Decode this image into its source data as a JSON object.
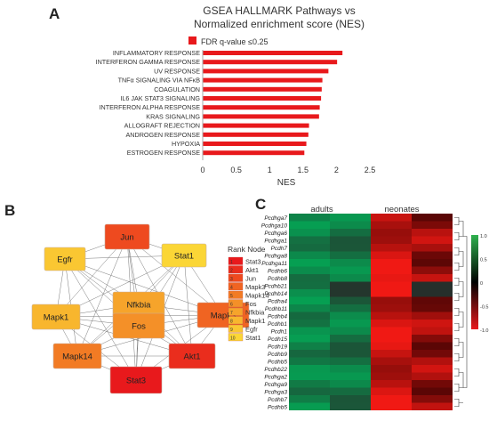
{
  "panel_a": {
    "letter": "A",
    "title_line1": "GSEA HALLMARK Pathways vs",
    "title_line2": "Normalized enrichment score (NES)",
    "legend_label": "FDR q-value  ≤0.25",
    "bar_color": "#e8191c"
  },
  "panel_b": {
    "letter": "B",
    "rank_title": "Rank  Node",
    "ranks": [
      "1",
      "2",
      "3",
      "4",
      "5",
      "6",
      "7",
      "8",
      "9",
      "10"
    ],
    "rank_colors": [
      "#e8191c",
      "#ea2d1d",
      "#ee4a1f",
      "#f06422",
      "#f27b24",
      "#f49028",
      "#f6a42b",
      "#f8b62e",
      "#fac732",
      "#fbd636"
    ],
    "nodes": [
      {
        "id": "jun",
        "label": "Jun",
        "rank": 3
      },
      {
        "id": "egfr",
        "label": "Egfr",
        "rank": 9
      },
      {
        "id": "stat1",
        "label": "Stat1",
        "rank": 10
      },
      {
        "id": "mapk1",
        "label": "Mapk1",
        "rank": 8
      },
      {
        "id": "nfkbia",
        "label": "Nfkbia",
        "rank": 7
      },
      {
        "id": "fos",
        "label": "Fos",
        "rank": 6
      },
      {
        "id": "mapk3",
        "label": "Mapk3",
        "rank": 4
      },
      {
        "id": "mapk14",
        "label": "Mapk14",
        "rank": 5
      },
      {
        "id": "stat3",
        "label": "Stat3",
        "rank": 1
      },
      {
        "id": "akt1",
        "label": "Akt1",
        "rank": 2
      }
    ]
  },
  "panel_c": {
    "letter": "C",
    "group_labels": [
      "adults",
      "neonates"
    ],
    "scale_ticks": [
      "1.0",
      "0.5",
      "0",
      "-0.5",
      "-1.0"
    ],
    "genes": [
      "Pcdhga7",
      "Pcdhga10",
      "Pcdhga6",
      "Pcdhga1",
      "Pcdh7",
      "Pcdhga8",
      "Pcdhga11",
      "Pcdhb6",
      "Pcdhb8",
      "Pcdhb21",
      "Pcdhb14",
      "Pcdha4",
      "Pcdhb11",
      "Pcdhb4",
      "Pcdhb1",
      "Pcdh1",
      "Pcdh15",
      "Pcdh19",
      "Pcdhb9",
      "Pcdhb5",
      "Pcdhb22",
      "Pcdhga2",
      "Pcdhga9",
      "Pcdhga3",
      "Pcdhb7",
      "Pcdhb5"
    ]
  },
  "chart_data": {
    "type": "bar",
    "orientation": "horizontal",
    "title": "GSEA HALLMARK Pathways vs Normalized enrichment score (NES)",
    "xlabel": "NES",
    "xlim": [
      0,
      2.5
    ],
    "xticks": [
      "0",
      "0.5",
      "1",
      "1.5",
      "2",
      "2.5"
    ],
    "categories": [
      "INFLAMMATORY  RESPONSE",
      "INTERFERON  GAMMA RESPONSE",
      "UV RESPONSE",
      "TNFα SIGNALING  VIA NFκB",
      "COAGULATION",
      "IL6 JAK STAT3 SIGNALING",
      "INTERFERON  ALPHA RESPONSE",
      "KRAS SIGNALING",
      "ALLOGRAFT REJECTION",
      "ANDROGEN  RESPONSE",
      "HYPOXIA",
      "ESTROGEN  RESPONSE"
    ],
    "series": [
      {
        "name": "FDR q-value  ≤0.25",
        "values": [
          2.09,
          2.01,
          1.88,
          1.79,
          1.78,
          1.77,
          1.75,
          1.74,
          1.59,
          1.58,
          1.55,
          1.52
        ]
      }
    ]
  }
}
